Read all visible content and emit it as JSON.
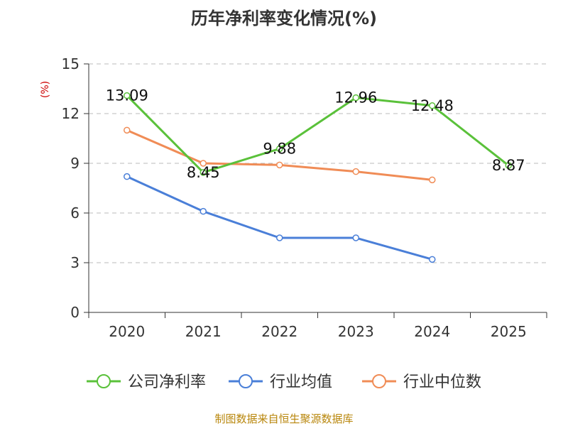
{
  "chart_data": {
    "type": "line",
    "title": "历年净利率变化情况(%)",
    "ylabel": "(%)",
    "xlabel": "",
    "categories": [
      "2020",
      "2021",
      "2022",
      "2023",
      "2024",
      "2025"
    ],
    "ylim": [
      0,
      15
    ],
    "yticks": [
      0,
      3,
      6,
      9,
      12,
      15
    ],
    "grid": true,
    "legend_position": "bottom",
    "series": [
      {
        "name": "公司净利率",
        "color": "#5ac13a",
        "values": [
          13.09,
          8.45,
          9.88,
          12.96,
          12.48,
          8.87
        ],
        "labels": [
          "13.09",
          "8.45",
          "9.88",
          "12.96",
          "12.48",
          "8.87"
        ]
      },
      {
        "name": "行业均值",
        "color": "#4a7fd8",
        "values": [
          8.2,
          6.1,
          4.5,
          4.5,
          3.2,
          null
        ]
      },
      {
        "name": "行业中位数",
        "color": "#f08c56",
        "values": [
          11.0,
          9.0,
          8.9,
          8.5,
          8.0,
          null
        ]
      }
    ]
  },
  "source": "制图数据来自恒生聚源数据库"
}
